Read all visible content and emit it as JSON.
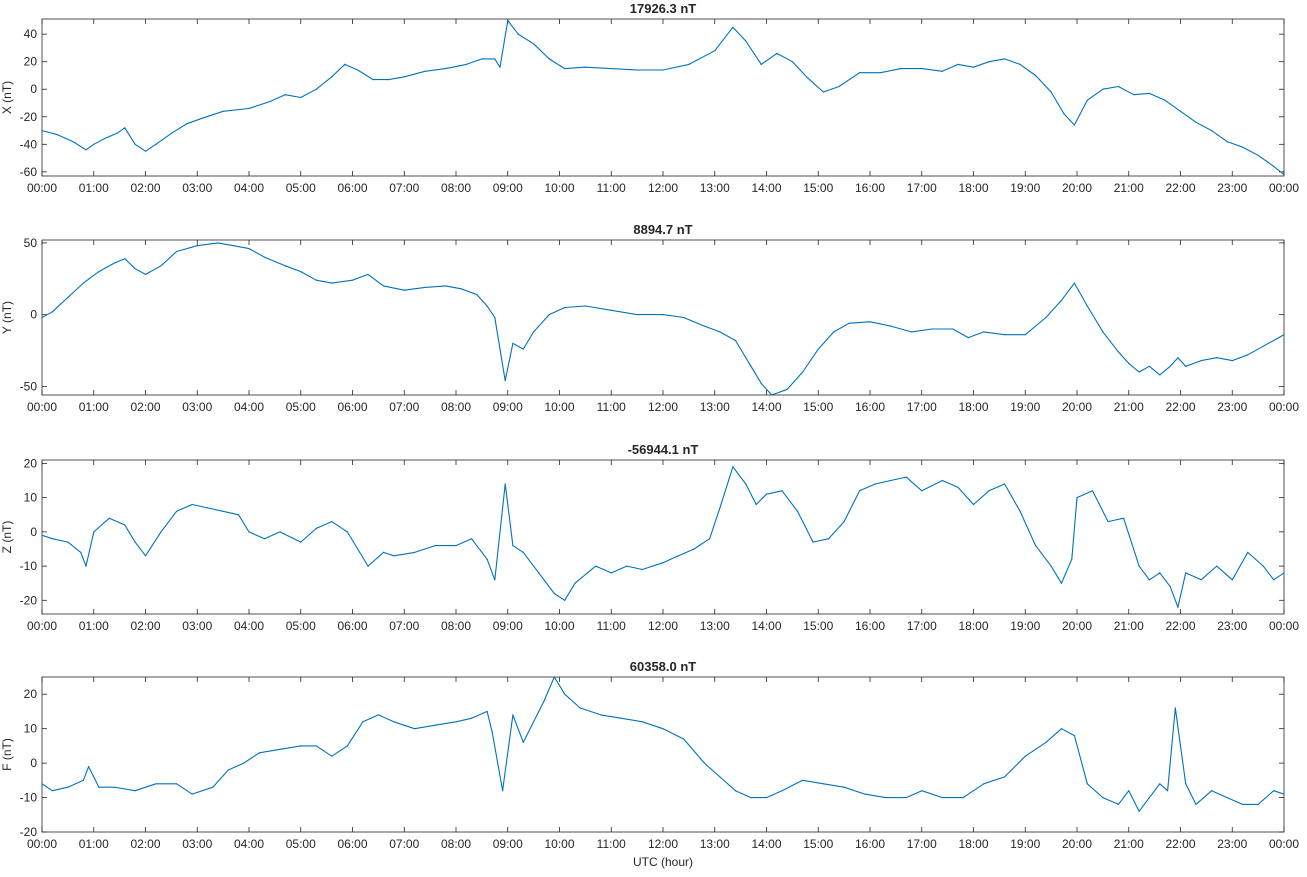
{
  "figure": {
    "xlabel": "UTC (hour)",
    "line_color": "#0072bd",
    "axis_color": "#262626"
  },
  "chart_data": [
    {
      "type": "line",
      "title": "17926.3 nT",
      "ylabel": "X (nT)",
      "xlim": [
        0,
        24
      ],
      "ylim": [
        -63,
        51
      ],
      "yticks": [
        -60,
        -40,
        -20,
        0,
        20,
        40
      ],
      "xticks": [
        "00:00",
        "01:00",
        "02:00",
        "03:00",
        "04:00",
        "05:00",
        "06:00",
        "07:00",
        "08:00",
        "09:00",
        "10:00",
        "11:00",
        "12:00",
        "13:00",
        "14:00",
        "15:00",
        "16:00",
        "17:00",
        "18:00",
        "19:00",
        "20:00",
        "21:00",
        "22:00",
        "23:00",
        "00:00"
      ],
      "series": [
        {
          "x": [
            0,
            0.3,
            0.6,
            0.85,
            1.0,
            1.2,
            1.45,
            1.6,
            1.8,
            2.0,
            2.2,
            2.5,
            2.8,
            3.1,
            3.5,
            4.0,
            4.4,
            4.7,
            5.0,
            5.3,
            5.6,
            5.85,
            6.1,
            6.4,
            6.7,
            7.0,
            7.4,
            7.8,
            8.2,
            8.5,
            8.75,
            8.85,
            9.0,
            9.2,
            9.5,
            9.8,
            10.1,
            10.5,
            11.0,
            11.5,
            12.0,
            12.5,
            13.0,
            13.35,
            13.6,
            13.9,
            14.2,
            14.5,
            14.8,
            15.1,
            15.4,
            15.8,
            16.2,
            16.6,
            17.0,
            17.4,
            17.7,
            18.0,
            18.3,
            18.6,
            18.9,
            19.2,
            19.5,
            19.75,
            19.95,
            20.2,
            20.5,
            20.8,
            21.1,
            21.4,
            21.7,
            22.0,
            22.3,
            22.6,
            22.9,
            23.2,
            23.5,
            23.8,
            24.0
          ],
          "y": [
            -30,
            -33,
            -38,
            -44,
            -40,
            -36,
            -32,
            -28,
            -40,
            -45,
            -40,
            -32,
            -25,
            -21,
            -16,
            -14,
            -9,
            -4,
            -6,
            0,
            9,
            18,
            14,
            7,
            7,
            9,
            13,
            15,
            18,
            22,
            22,
            16,
            50,
            40,
            33,
            22,
            15,
            16,
            15,
            14,
            14,
            18,
            28,
            45,
            35,
            18,
            26,
            20,
            8,
            -2,
            2,
            12,
            12,
            15,
            15,
            13,
            18,
            16,
            20,
            22,
            18,
            10,
            -2,
            -18,
            -26,
            -8,
            0,
            2,
            -4,
            -3,
            -8,
            -16,
            -24,
            -30,
            -38,
            -42,
            -48,
            -56,
            -62
          ]
        }
      ]
    },
    {
      "type": "line",
      "title": "8894.7 nT",
      "ylabel": "Y (nT)",
      "xlim": [
        0,
        24
      ],
      "ylim": [
        -56,
        52
      ],
      "yticks": [
        -50,
        0,
        50
      ],
      "xticks": [
        "00:00",
        "01:00",
        "02:00",
        "03:00",
        "04:00",
        "05:00",
        "06:00",
        "07:00",
        "08:00",
        "09:00",
        "10:00",
        "11:00",
        "12:00",
        "13:00",
        "14:00",
        "15:00",
        "16:00",
        "17:00",
        "18:00",
        "19:00",
        "20:00",
        "21:00",
        "22:00",
        "23:00",
        "00:00"
      ],
      "series": [
        {
          "x": [
            0,
            0.2,
            0.5,
            0.8,
            1.1,
            1.4,
            1.6,
            1.8,
            2.0,
            2.3,
            2.6,
            3.0,
            3.4,
            3.7,
            4.0,
            4.3,
            4.7,
            5.0,
            5.3,
            5.6,
            6.0,
            6.3,
            6.6,
            7.0,
            7.4,
            7.8,
            8.1,
            8.4,
            8.6,
            8.75,
            8.95,
            9.1,
            9.3,
            9.5,
            9.8,
            10.1,
            10.5,
            11.0,
            11.5,
            12.0,
            12.4,
            12.8,
            13.1,
            13.4,
            13.7,
            13.9,
            14.1,
            14.4,
            14.7,
            15.0,
            15.3,
            15.6,
            16.0,
            16.4,
            16.8,
            17.2,
            17.6,
            17.9,
            18.2,
            18.6,
            19.0,
            19.4,
            19.7,
            19.95,
            20.2,
            20.5,
            20.8,
            21.0,
            21.2,
            21.4,
            21.6,
            21.8,
            21.95,
            22.1,
            22.4,
            22.7,
            23.0,
            23.3,
            23.6,
            23.9,
            24.0
          ],
          "y": [
            -2,
            2,
            12,
            22,
            30,
            36,
            39,
            32,
            28,
            34,
            44,
            48,
            50,
            48,
            46,
            40,
            34,
            30,
            24,
            22,
            24,
            28,
            20,
            17,
            19,
            20,
            18,
            14,
            6,
            -2,
            -46,
            -20,
            -24,
            -12,
            0,
            5,
            6,
            3,
            0,
            0,
            -2,
            -8,
            -12,
            -18,
            -36,
            -48,
            -56,
            -52,
            -40,
            -24,
            -12,
            -6,
            -5,
            -8,
            -12,
            -10,
            -10,
            -16,
            -12,
            -14,
            -14,
            -2,
            10,
            22,
            6,
            -12,
            -26,
            -34,
            -40,
            -36,
            -42,
            -36,
            -30,
            -36,
            -32,
            -30,
            -32,
            -28,
            -22,
            -16,
            -14
          ]
        }
      ]
    },
    {
      "type": "line",
      "title": "-56944.1 nT",
      "ylabel": "Z (nT)",
      "xlim": [
        0,
        24
      ],
      "ylim": [
        -24,
        21
      ],
      "yticks": [
        -20,
        -10,
        0,
        10,
        20
      ],
      "xticks": [
        "00:00",
        "01:00",
        "02:00",
        "03:00",
        "04:00",
        "05:00",
        "06:00",
        "07:00",
        "08:00",
        "09:00",
        "10:00",
        "11:00",
        "12:00",
        "13:00",
        "14:00",
        "15:00",
        "16:00",
        "17:00",
        "18:00",
        "19:00",
        "20:00",
        "21:00",
        "22:00",
        "23:00",
        "00:00"
      ],
      "series": [
        {
          "x": [
            0,
            0.2,
            0.5,
            0.75,
            0.85,
            1.0,
            1.3,
            1.6,
            1.8,
            2.0,
            2.3,
            2.6,
            2.9,
            3.2,
            3.5,
            3.8,
            4.0,
            4.3,
            4.6,
            5.0,
            5.3,
            5.6,
            5.9,
            6.1,
            6.3,
            6.6,
            6.8,
            7.2,
            7.6,
            8.0,
            8.3,
            8.6,
            8.75,
            8.95,
            9.1,
            9.3,
            9.6,
            9.9,
            10.1,
            10.3,
            10.7,
            11.0,
            11.3,
            11.6,
            12.0,
            12.3,
            12.6,
            12.9,
            13.1,
            13.35,
            13.6,
            13.8,
            14.0,
            14.3,
            14.6,
            14.9,
            15.2,
            15.5,
            15.8,
            16.1,
            16.4,
            16.7,
            17.0,
            17.4,
            17.7,
            18.0,
            18.3,
            18.6,
            18.9,
            19.2,
            19.5,
            19.7,
            19.9,
            20.0,
            20.3,
            20.6,
            20.9,
            21.2,
            21.4,
            21.6,
            21.8,
            21.95,
            22.1,
            22.4,
            22.7,
            23.0,
            23.3,
            23.6,
            23.8,
            24.0
          ],
          "y": [
            -1,
            -2,
            -3,
            -6,
            -10,
            0,
            4,
            2,
            -3,
            -7,
            0,
            6,
            8,
            7,
            6,
            5,
            0,
            -2,
            0,
            -3,
            1,
            3,
            0,
            -5,
            -10,
            -6,
            -7,
            -6,
            -4,
            -4,
            -2,
            -8,
            -14,
            14,
            -4,
            -6,
            -12,
            -18,
            -20,
            -15,
            -10,
            -12,
            -10,
            -11,
            -9,
            -7,
            -5,
            -2,
            7,
            19,
            14,
            8,
            11,
            12,
            6,
            -3,
            -2,
            3,
            12,
            14,
            15,
            16,
            12,
            15,
            13,
            8,
            12,
            14,
            6,
            -4,
            -10,
            -15,
            -8,
            10,
            12,
            3,
            4,
            -10,
            -14,
            -12,
            -16,
            -22,
            -12,
            -14,
            -10,
            -14,
            -6,
            -10,
            -14,
            -12
          ]
        }
      ]
    },
    {
      "type": "line",
      "title": "60358.0 nT",
      "ylabel": "F (nT)",
      "xlim": [
        0,
        24
      ],
      "ylim": [
        -20,
        25
      ],
      "yticks": [
        -20,
        -10,
        0,
        10,
        20
      ],
      "xticks": [
        "00:00",
        "01:00",
        "02:00",
        "03:00",
        "04:00",
        "05:00",
        "06:00",
        "07:00",
        "08:00",
        "09:00",
        "10:00",
        "11:00",
        "12:00",
        "13:00",
        "14:00",
        "15:00",
        "16:00",
        "17:00",
        "18:00",
        "19:00",
        "20:00",
        "21:00",
        "22:00",
        "23:00",
        "00:00"
      ],
      "series": [
        {
          "x": [
            0,
            0.2,
            0.5,
            0.8,
            0.9,
            1.1,
            1.4,
            1.8,
            2.2,
            2.6,
            2.9,
            3.3,
            3.6,
            3.9,
            4.2,
            4.6,
            5.0,
            5.3,
            5.6,
            5.9,
            6.2,
            6.5,
            6.8,
            7.2,
            7.6,
            8.0,
            8.3,
            8.6,
            8.7,
            8.9,
            9.1,
            9.3,
            9.5,
            9.7,
            9.9,
            10.1,
            10.4,
            10.8,
            11.2,
            11.6,
            12.0,
            12.4,
            12.8,
            13.1,
            13.4,
            13.7,
            14.0,
            14.3,
            14.7,
            15.1,
            15.5,
            15.9,
            16.3,
            16.7,
            17.0,
            17.4,
            17.8,
            18.2,
            18.6,
            19.0,
            19.4,
            19.7,
            19.95,
            20.2,
            20.5,
            20.8,
            21.0,
            21.2,
            21.4,
            21.6,
            21.75,
            21.9,
            22.1,
            22.3,
            22.6,
            22.9,
            23.2,
            23.5,
            23.8,
            24.0
          ],
          "y": [
            -6,
            -8,
            -7,
            -5,
            -1,
            -7,
            -7,
            -8,
            -6,
            -6,
            -9,
            -7,
            -2,
            0,
            3,
            4,
            5,
            5,
            2,
            5,
            12,
            14,
            12,
            10,
            11,
            12,
            13,
            15,
            9,
            -8,
            14,
            6,
            12,
            18,
            25,
            20,
            16,
            14,
            13,
            12,
            10,
            7,
            0,
            -4,
            -8,
            -10,
            -10,
            -8,
            -5,
            -6,
            -7,
            -9,
            -10,
            -10,
            -8,
            -10,
            -10,
            -6,
            -4,
            2,
            6,
            10,
            8,
            -6,
            -10,
            -12,
            -8,
            -14,
            -10,
            -6,
            -8,
            16,
            -6,
            -12,
            -8,
            -10,
            -12,
            -12,
            -8,
            -9
          ]
        }
      ]
    }
  ]
}
